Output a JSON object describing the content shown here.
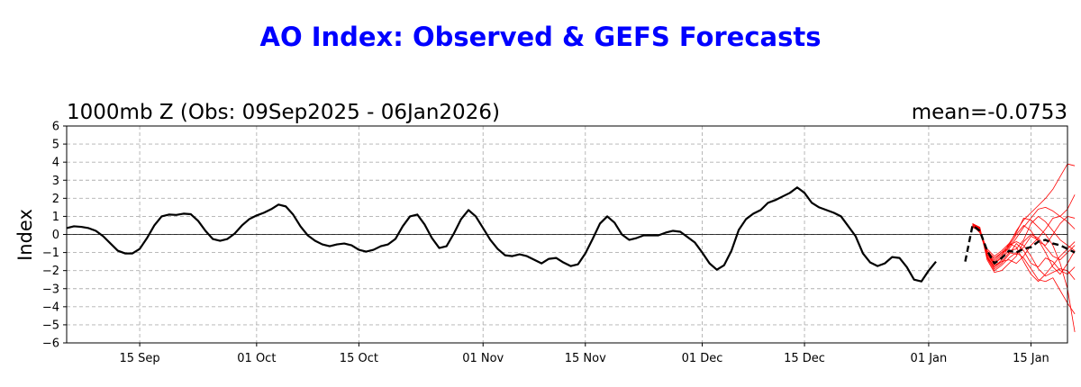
{
  "chart_data": {
    "type": "line",
    "title": "AO Index: Observed & GEFS Forecasts",
    "subtitle": "1000mb Z (Obs: 09Sep2025 - 06Jan2026)",
    "mean_text": "mean=-0.0753",
    "ylabel": "Index",
    "xlabel": "",
    "ylim": [
      -6,
      6
    ],
    "xlim": [
      "2025-09-05",
      "2026-01-20"
    ],
    "yticks": [
      6,
      5,
      4,
      3,
      2,
      1,
      0,
      -1,
      -2,
      -3,
      -4,
      -5,
      -6
    ],
    "ytick_labels": [
      "6",
      "5",
      "4",
      "3",
      "2",
      "1",
      "0",
      "−1",
      "−2",
      "−3",
      "−4",
      "−5",
      "−6"
    ],
    "xticks": [
      {
        "date": "2025-09-15",
        "label": "15 Sep"
      },
      {
        "date": "2025-10-01",
        "label": "01 Oct"
      },
      {
        "date": "2025-10-15",
        "label": "15 Oct"
      },
      {
        "date": "2025-11-01",
        "label": "01 Nov"
      },
      {
        "date": "2025-11-15",
        "label": "15 Nov"
      },
      {
        "date": "2025-12-01",
        "label": "01 Dec"
      },
      {
        "date": "2025-12-15",
        "label": "15 Dec"
      },
      {
        "date": "2026-01-01",
        "label": "01 Jan"
      },
      {
        "date": "2026-01-15",
        "label": "15 Jan"
      }
    ],
    "grid": true,
    "colors": {
      "title": "#0000ff",
      "observed": "#000000",
      "ensemble": "#ff0000",
      "mean": "#000000",
      "grid": "#b0b0b0"
    },
    "series": [
      {
        "style": "solid",
        "x_start": "2025-09-05",
        "values": [
          0.35,
          0.45,
          0.42,
          0.35,
          0.2,
          -0.1,
          -0.5,
          -0.9,
          -1.05,
          -1.05,
          -0.8,
          -0.2,
          0.5,
          1.0,
          1.1,
          1.08,
          1.15,
          1.12,
          0.75,
          0.2,
          -0.25,
          -0.35,
          -0.25,
          0.05,
          0.5,
          0.85,
          1.05,
          1.2,
          1.4,
          1.65,
          1.55,
          1.1,
          0.45,
          -0.05,
          -0.35,
          -0.55,
          -0.65,
          -0.55,
          -0.5,
          -0.6,
          -0.85,
          -0.95,
          -0.85,
          -0.65,
          -0.55,
          -0.25,
          0.45,
          1.0,
          1.1,
          0.55,
          -0.2,
          -0.75,
          -0.65,
          0.05,
          0.85,
          1.35,
          1.0,
          0.35,
          -0.3,
          -0.8,
          -1.15,
          -1.2,
          -1.1,
          -1.2,
          -1.4,
          -1.6,
          -1.35,
          -1.3,
          -1.55,
          -1.75,
          -1.65,
          -1.05,
          -0.25,
          0.6,
          1.0,
          0.65,
          0.0,
          -0.3,
          -0.2,
          -0.05,
          -0.05,
          -0.05,
          0.1,
          0.2,
          0.15,
          -0.15,
          -0.45,
          -1.0,
          -1.6,
          -1.95,
          -1.7,
          -0.9,
          0.25,
          0.85,
          1.15,
          1.35,
          1.75,
          1.9,
          2.1,
          2.3,
          2.6,
          2.3,
          1.75,
          1.5,
          1.35,
          1.2,
          1.0,
          0.45,
          -0.1,
          -1.05,
          -1.55,
          -1.75,
          -1.6,
          -1.25,
          -1.3,
          -1.8,
          -2.5,
          -2.6,
          -2.0,
          -1.5
        ]
      },
      {
        "style": "dashed",
        "x_start": "2026-01-06",
        "values": [
          -1.5,
          0.5,
          0.2,
          -0.9,
          -1.6,
          -1.3,
          -0.9,
          -1.0,
          -0.8,
          -0.7,
          -0.4,
          -0.3,
          -0.5,
          -0.6,
          -0.8,
          -1.0
        ]
      }
    ],
    "ensemble": {
      "x_start": "2026-01-07",
      "members": [
        [
          0.6,
          0.3,
          -1.2,
          -1.8,
          -1.4,
          -0.6,
          0.2,
          0.8,
          1.2,
          1.6,
          2.0,
          2.5,
          3.2,
          3.9,
          3.8
        ],
        [
          0.5,
          0.1,
          -0.9,
          -1.3,
          -1.0,
          -0.8,
          -0.2,
          0.4,
          0.9,
          1.4,
          1.5,
          1.3,
          1.0,
          1.4,
          2.2
        ],
        [
          0.4,
          0.2,
          -1.0,
          -1.6,
          -1.2,
          -0.5,
          0.1,
          0.9,
          0.8,
          0.4,
          0.0,
          -0.6,
          -1.6,
          -3.0,
          -5.4
        ],
        [
          0.55,
          0.35,
          -1.3,
          -2.0,
          -1.7,
          -1.3,
          -1.0,
          -1.3,
          -1.9,
          -2.5,
          -2.6,
          -2.4,
          -3.1,
          -3.8,
          -4.4
        ],
        [
          0.5,
          0.25,
          -1.1,
          -1.7,
          -1.5,
          -1.4,
          -1.6,
          -1.2,
          -0.6,
          -0.2,
          0.3,
          0.9,
          1.0,
          0.7,
          0.3
        ],
        [
          0.45,
          0.15,
          -0.8,
          -1.2,
          -0.9,
          -0.5,
          -0.7,
          -1.5,
          -2.2,
          -2.6,
          -2.2,
          -1.7,
          -1.2,
          -0.8,
          -0.4
        ],
        [
          0.6,
          0.4,
          -1.4,
          -2.1,
          -2.0,
          -1.6,
          -1.2,
          -0.4,
          0.0,
          -0.2,
          -0.7,
          -1.2,
          -1.4,
          -1.0,
          -0.6
        ],
        [
          0.5,
          0.2,
          -1.0,
          -1.5,
          -1.1,
          -0.7,
          0.0,
          0.5,
          0.2,
          -0.4,
          -0.6,
          0.0,
          0.6,
          1.0,
          0.9
        ],
        [
          0.55,
          0.3,
          -1.2,
          -1.9,
          -1.6,
          -1.1,
          -0.5,
          -0.9,
          -1.6,
          -1.8,
          -1.3,
          -1.5,
          -2.0,
          -2.2,
          -1.8
        ],
        [
          0.5,
          0.1,
          -1.1,
          -1.6,
          -1.3,
          -0.9,
          -0.8,
          -0.3,
          0.6,
          1.0,
          0.7,
          0.2,
          -0.3,
          -0.6,
          -0.9
        ],
        [
          0.45,
          0.25,
          -0.9,
          -1.4,
          -1.0,
          -0.6,
          -0.4,
          -0.6,
          -1.2,
          -1.9,
          -2.3,
          -2.1,
          -1.9,
          -2.0,
          -2.5
        ],
        [
          0.6,
          0.35,
          -1.3,
          -1.8,
          -1.5,
          -1.0,
          -1.1,
          -0.7,
          -0.1,
          -0.3,
          -1.0,
          -1.8,
          -2.2,
          -1.6,
          -0.9
        ]
      ]
    }
  }
}
